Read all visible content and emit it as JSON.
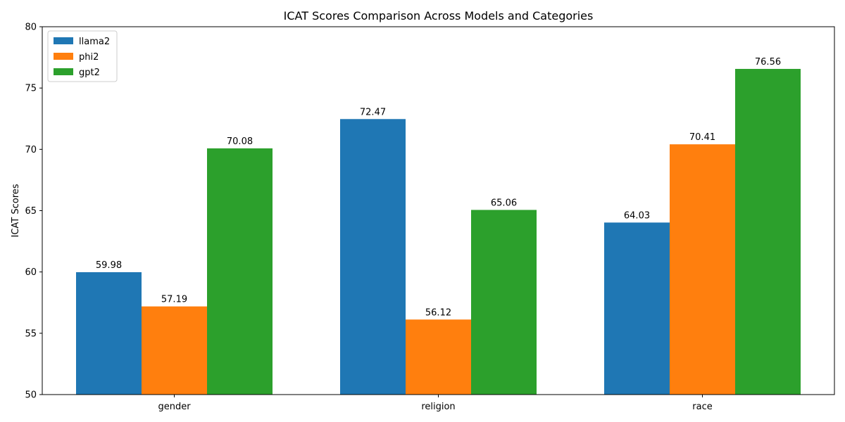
{
  "chart_data": {
    "type": "bar",
    "title": "ICAT Scores Comparison Across Models and Categories",
    "xlabel": "",
    "ylabel": "ICAT Scores",
    "categories": [
      "gender",
      "religion",
      "race"
    ],
    "series": [
      {
        "name": "llama2",
        "color": "#1f77b4",
        "values": [
          59.98,
          72.47,
          64.03
        ],
        "labels": [
          "59.98",
          "72.47",
          "64.03"
        ]
      },
      {
        "name": "phi2",
        "color": "#ff7f0e",
        "values": [
          57.19,
          56.12,
          70.41
        ],
        "labels": [
          "57.19",
          "56.12",
          "70.41"
        ]
      },
      {
        "name": "gpt2",
        "color": "#2ca02c",
        "values": [
          70.08,
          65.06,
          76.56
        ],
        "labels": [
          "70.08",
          "65.06",
          "76.56"
        ]
      }
    ],
    "ylim": [
      50,
      80
    ],
    "yticks": [
      "50",
      "55",
      "60",
      "65",
      "70",
      "75",
      "80"
    ],
    "grid": false,
    "legend_position": "top-left"
  }
}
